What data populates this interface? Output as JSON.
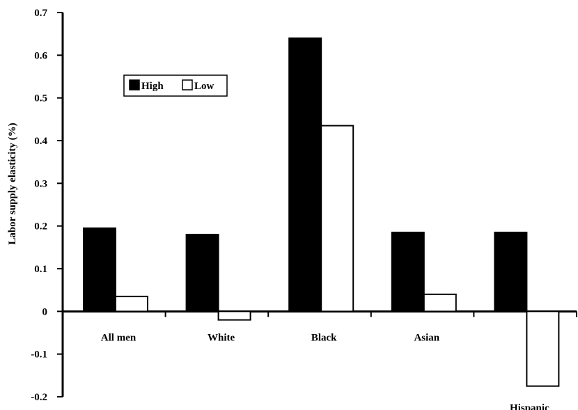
{
  "chart_data": {
    "type": "bar",
    "title": "",
    "xlabel": "",
    "ylabel": "Labor supply elasticity (%)",
    "ylim": [
      -0.2,
      0.7
    ],
    "yticks": [
      -0.2,
      -0.1,
      0,
      0.1,
      0.2,
      0.3,
      0.4,
      0.5,
      0.6,
      0.7
    ],
    "ytick_labels": [
      "-0.2",
      "-0.1",
      "0",
      "0.1",
      "0.2",
      "0.3",
      "0.4",
      "0.5",
      "0.6",
      "0.7"
    ],
    "categories": [
      "All men",
      "White",
      "Black",
      "Asian",
      "Hispanic"
    ],
    "series": [
      {
        "name": "High",
        "values": [
          0.195,
          0.18,
          0.64,
          0.185,
          0.185
        ],
        "color": "#000000"
      },
      {
        "name": "Low",
        "values": [
          0.035,
          -0.02,
          0.435,
          0.04,
          -0.175
        ],
        "color": "#ffffff"
      }
    ],
    "grid": false,
    "legend": "upper-left"
  }
}
